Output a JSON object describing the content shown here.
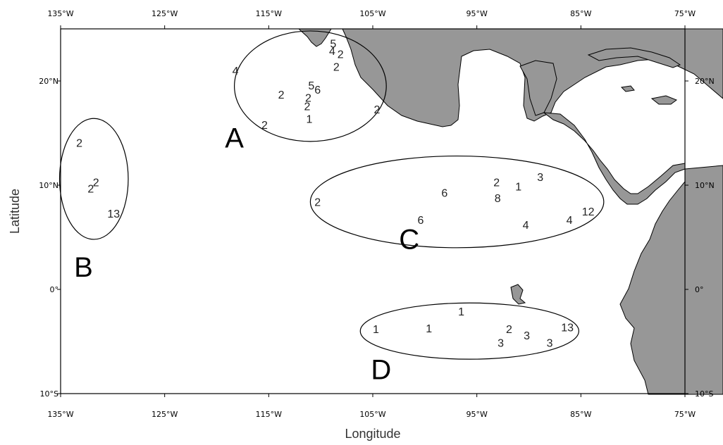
{
  "axes": {
    "xlabel": "Longitude",
    "ylabel": "Latitude",
    "x_ticks": [
      {
        "value": -135,
        "label": "135°W"
      },
      {
        "value": -125,
        "label": "125°W"
      },
      {
        "value": -115,
        "label": "115°W"
      },
      {
        "value": -105,
        "label": "105°W"
      },
      {
        "value": -95,
        "label": "95°W"
      },
      {
        "value": -85,
        "label": "85°W"
      },
      {
        "value": -75,
        "label": "75°W"
      }
    ],
    "y_ticks": [
      {
        "value": 20,
        "label": "20°N"
      },
      {
        "value": 10,
        "label": "10°N"
      },
      {
        "value": 0,
        "label": "0°"
      },
      {
        "value": -10,
        "label": "10°S"
      }
    ],
    "xlim": [
      -135,
      -75
    ],
    "ylim": [
      -10,
      25
    ]
  },
  "land_color": "#979797",
  "regions": [
    {
      "label": "A",
      "center_lon": -111,
      "center_lat": 19.5,
      "radius_lon": 7.3,
      "radius_lat": 5.3,
      "label_lon": -118.3,
      "label_lat": 13.6
    },
    {
      "label": "B",
      "center_lon": -131.8,
      "center_lat": 10.6,
      "radius_lon": 3.3,
      "radius_lat": 5.8,
      "label_lon": -132.8,
      "label_lat": 1.2
    },
    {
      "label": "C",
      "center_lon": -96.9,
      "center_lat": 8.4,
      "radius_lon": 14.1,
      "radius_lat": 4.4,
      "label_lon": -101.5,
      "label_lat": 3.9
    },
    {
      "label": "D",
      "center_lon": -95.7,
      "center_lat": -4.0,
      "radius_lon": 10.5,
      "radius_lat": 2.7,
      "label_lon": -104.2,
      "label_lat": -8.6
    }
  ],
  "counts": [
    {
      "value": "5",
      "lon": -108.8,
      "lat": 23.6
    },
    {
      "value": "4",
      "lon": -108.9,
      "lat": 22.9
    },
    {
      "value": "2",
      "lon": -108.1,
      "lat": 22.6
    },
    {
      "value": "2",
      "lon": -108.5,
      "lat": 21.4
    },
    {
      "value": "4",
      "lon": -118.2,
      "lat": 21.0
    },
    {
      "value": "5",
      "lon": -110.9,
      "lat": 19.6
    },
    {
      "value": "6",
      "lon": -110.3,
      "lat": 19.2
    },
    {
      "value": "2",
      "lon": -113.8,
      "lat": 18.7
    },
    {
      "value": "2",
      "lon": -111.2,
      "lat": 18.4
    },
    {
      "value": "2",
      "lon": -111.3,
      "lat": 17.6
    },
    {
      "value": "2",
      "lon": -104.6,
      "lat": 17.3
    },
    {
      "value": "1",
      "lon": -111.1,
      "lat": 16.4
    },
    {
      "value": "2",
      "lon": -115.4,
      "lat": 15.8
    },
    {
      "value": "2",
      "lon": -133.2,
      "lat": 14.1
    },
    {
      "value": "2",
      "lon": -131.6,
      "lat": 10.3
    },
    {
      "value": "2",
      "lon": -132.1,
      "lat": 9.7
    },
    {
      "value": "13",
      "lon": -129.9,
      "lat": 7.3
    },
    {
      "value": "2",
      "lon": -110.3,
      "lat": 8.4
    },
    {
      "value": "6",
      "lon": -98.1,
      "lat": 9.3
    },
    {
      "value": "2",
      "lon": -93.1,
      "lat": 10.3
    },
    {
      "value": "1",
      "lon": -91.0,
      "lat": 9.9
    },
    {
      "value": "3",
      "lon": -88.9,
      "lat": 10.8
    },
    {
      "value": "8",
      "lon": -93.0,
      "lat": 8.8
    },
    {
      "value": "12",
      "lon": -84.3,
      "lat": 7.5
    },
    {
      "value": "6",
      "lon": -100.4,
      "lat": 6.7
    },
    {
      "value": "4",
      "lon": -86.1,
      "lat": 6.7
    },
    {
      "value": "4",
      "lon": -90.3,
      "lat": 6.2
    },
    {
      "value": "1",
      "lon": -96.5,
      "lat": -2.1
    },
    {
      "value": "1",
      "lon": -104.7,
      "lat": -3.8
    },
    {
      "value": "1",
      "lon": -99.6,
      "lat": -3.7
    },
    {
      "value": "2",
      "lon": -91.9,
      "lat": -3.8
    },
    {
      "value": "3",
      "lon": -92.7,
      "lat": -5.1
    },
    {
      "value": "3",
      "lon": -90.2,
      "lat": -4.4
    },
    {
      "value": "3",
      "lon": -88.0,
      "lat": -5.1
    },
    {
      "value": "13",
      "lon": -86.3,
      "lat": -3.6
    }
  ]
}
